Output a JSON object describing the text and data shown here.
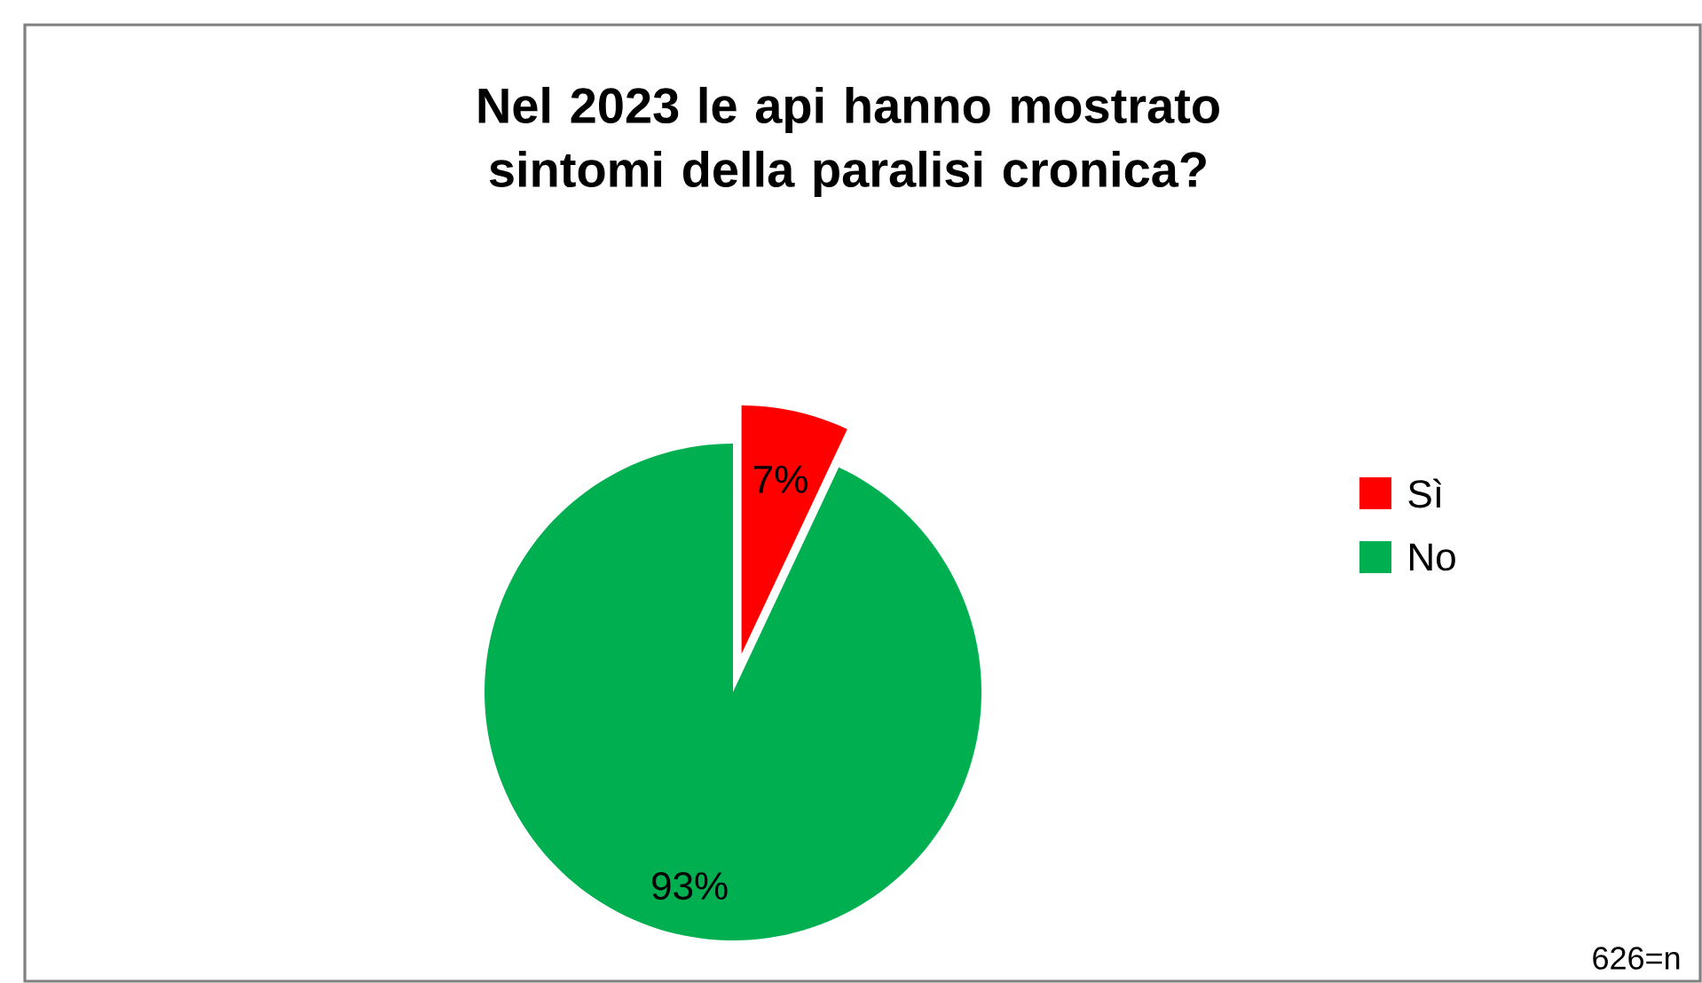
{
  "chart_data": {
    "type": "pie",
    "title": "Nel 2023 le api hanno mostrato sintomi della paralisi cronica?",
    "categories": [
      "Sì",
      "No"
    ],
    "values": [
      7,
      93
    ],
    "colors": [
      "#ff0000",
      "#00b050"
    ],
    "value_labels": [
      "7%",
      "93%"
    ],
    "legend": "right",
    "annotations": [
      "626=n"
    ]
  }
}
